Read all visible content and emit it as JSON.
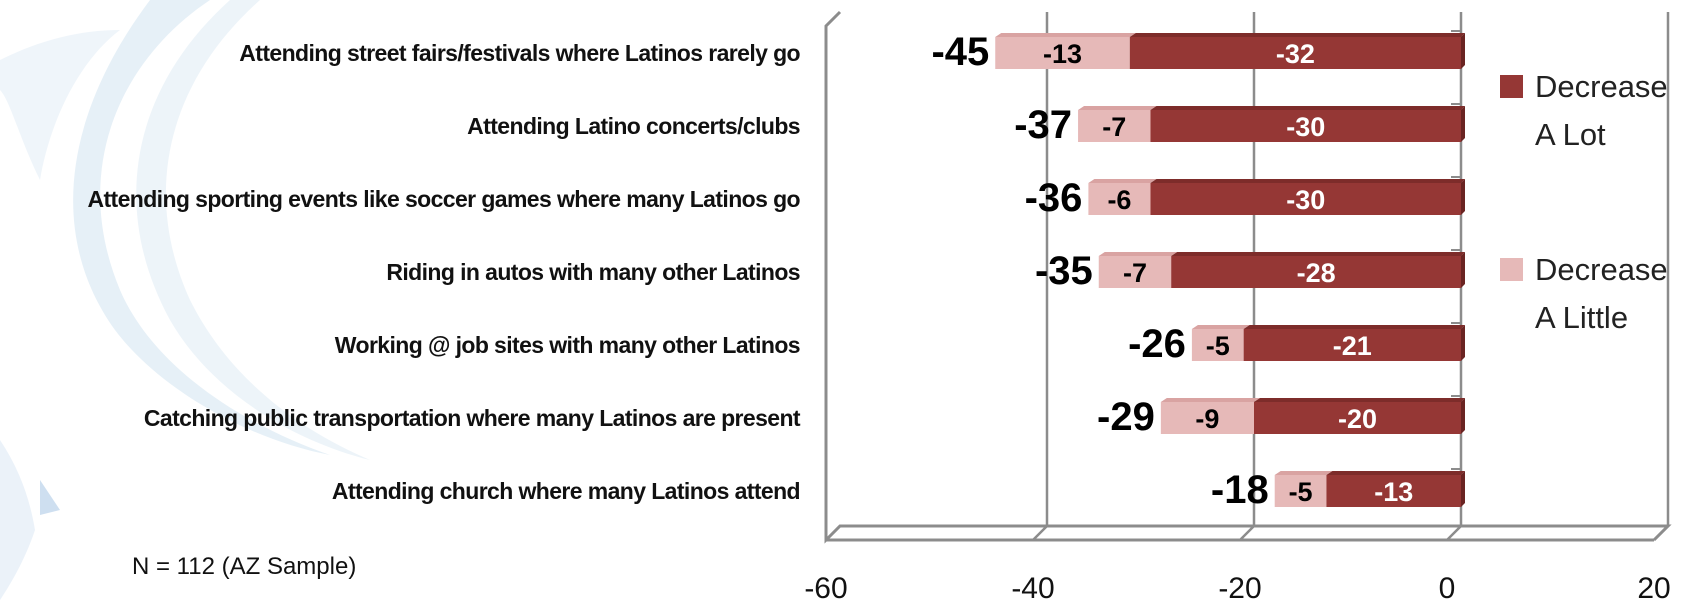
{
  "chart_data": {
    "type": "bar",
    "orientation": "horizontal",
    "stacked": true,
    "categories": [
      "Attending street fairs/festivals where Latinos rarely go",
      "Attending Latino concerts/clubs",
      "Attending sporting events like soccer games where many Latinos go",
      "Riding in autos with many other Latinos",
      "Working @ job sites with many other Latinos",
      "Catching public transportation where many Latinos are present",
      "Attending church where many Latinos attend"
    ],
    "series": [
      {
        "name": "Decrease A Lot",
        "values": [
          -32,
          -30,
          -30,
          -28,
          -21,
          -20,
          -13
        ],
        "color": "#953735",
        "label_color": "#ffffff"
      },
      {
        "name": "Decrease A Little",
        "values": [
          -13,
          -7,
          -6,
          -7,
          -5,
          -9,
          -5
        ],
        "color": "#e6b9b8",
        "label_color": "#000000"
      }
    ],
    "totals": [
      -45,
      -37,
      -36,
      -35,
      -26,
      -29,
      -18
    ],
    "xlim": [
      -60,
      20
    ],
    "xticks": [
      "-60",
      "-40",
      "-20",
      "0",
      "20"
    ],
    "grid": true,
    "legend": {
      "position": "right",
      "entries": [
        {
          "line1": "Decrease",
          "line2": "A Lot",
          "color": "#953735"
        },
        {
          "line1": "Decrease",
          "line2": "A Little",
          "color": "#e6b9b8"
        }
      ]
    }
  },
  "note": "N = 112 (AZ Sample)"
}
